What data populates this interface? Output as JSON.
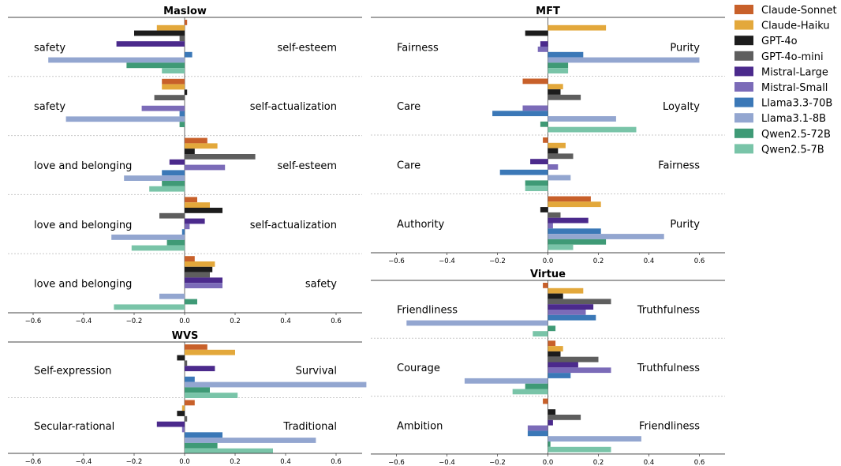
{
  "legend": {
    "placement": "top-right",
    "entries": [
      {
        "name": "Claude-Sonnet",
        "color": "#c8602a"
      },
      {
        "name": "Claude-Haiku",
        "color": "#e3a83b"
      },
      {
        "name": "GPT-4o",
        "color": "#1c1c1c"
      },
      {
        "name": "GPT-4o-mini",
        "color": "#5e5e5e"
      },
      {
        "name": "Mistral-Large",
        "color": "#4b2a8c"
      },
      {
        "name": "Mistral-Small",
        "color": "#7b6bb8"
      },
      {
        "name": "Llama3.3-70B",
        "color": "#3b78b7"
      },
      {
        "name": "Llama3.1-8B",
        "color": "#93a6d0"
      },
      {
        "name": "Qwen2.5-72B",
        "color": "#3f9a76"
      },
      {
        "name": "Qwen2.5-7B",
        "color": "#79c4a8"
      }
    ]
  },
  "chart_data": [
    {
      "type": "bar",
      "orientation": "horizontal",
      "title": "Maslow",
      "xlim": [
        -0.7,
        0.7
      ],
      "xticks": [
        -0.6,
        -0.4,
        -0.2,
        0.0,
        0.2,
        0.4,
        0.6
      ],
      "grid": false,
      "groups": [
        {
          "left": "safety",
          "right": "self-esteem",
          "values": [
            0.01,
            -0.11,
            -0.2,
            -0.02,
            -0.27,
            0.0,
            0.03,
            -0.54,
            -0.23,
            -0.09
          ]
        },
        {
          "left": "safety",
          "right": "self-actualization",
          "values": [
            -0.09,
            -0.09,
            0.01,
            -0.12,
            0.0,
            -0.17,
            -0.02,
            -0.47,
            -0.02,
            0.0
          ]
        },
        {
          "left": "love and belonging",
          "right": "self-esteem",
          "values": [
            0.09,
            0.13,
            0.04,
            0.28,
            -0.06,
            0.16,
            -0.09,
            -0.24,
            -0.09,
            -0.14
          ]
        },
        {
          "left": "love and belonging",
          "right": "self-actualization",
          "values": [
            0.05,
            0.1,
            0.15,
            -0.1,
            0.08,
            0.02,
            -0.01,
            -0.29,
            -0.07,
            -0.21
          ]
        },
        {
          "left": "love and belonging",
          "right": "safety",
          "values": [
            0.04,
            0.12,
            0.11,
            0.1,
            0.15,
            0.15,
            0.0,
            -0.1,
            0.05,
            -0.28
          ]
        }
      ]
    },
    {
      "type": "bar",
      "orientation": "horizontal",
      "title": "WVS",
      "xlim": [
        -0.7,
        0.7
      ],
      "xticks": [
        -0.6,
        -0.4,
        -0.2,
        0.0,
        0.2,
        0.4,
        0.6
      ],
      "grid": false,
      "groups": [
        {
          "left": "Self-expression",
          "right": "Survival",
          "values": [
            0.09,
            0.2,
            -0.03,
            0.01,
            0.12,
            0.0,
            0.04,
            0.72,
            0.1,
            0.21
          ]
        },
        {
          "left": "Secular-rational",
          "right": "Traditional",
          "values": [
            0.04,
            -0.01,
            -0.03,
            0.01,
            -0.11,
            -0.01,
            0.15,
            0.52,
            0.13,
            0.35
          ]
        }
      ]
    },
    {
      "type": "bar",
      "orientation": "horizontal",
      "title": "MFT",
      "xlim": [
        -0.7,
        0.7
      ],
      "xticks": [
        -0.6,
        -0.4,
        -0.2,
        0.0,
        0.2,
        0.4,
        0.6
      ],
      "grid": false,
      "groups": [
        {
          "left": "Fairness",
          "right": "Purity",
          "values": [
            0.0,
            0.23,
            -0.09,
            0.0,
            -0.03,
            -0.04,
            0.14,
            0.6,
            0.08,
            0.08
          ]
        },
        {
          "left": "Care",
          "right": "Loyalty",
          "values": [
            -0.1,
            0.06,
            0.05,
            0.13,
            0.0,
            -0.1,
            -0.22,
            0.27,
            -0.03,
            0.35
          ]
        },
        {
          "left": "Care",
          "right": "Fairness",
          "values": [
            -0.02,
            0.07,
            0.04,
            0.1,
            -0.07,
            0.04,
            -0.19,
            0.09,
            -0.09,
            -0.09
          ]
        },
        {
          "left": "Authority",
          "right": "Purity",
          "values": [
            0.17,
            0.21,
            -0.03,
            0.05,
            0.16,
            0.02,
            0.21,
            0.46,
            0.23,
            0.1
          ]
        }
      ]
    },
    {
      "type": "bar",
      "orientation": "horizontal",
      "title": "Virtue",
      "xlim": [
        -0.7,
        0.7
      ],
      "xticks": [
        -0.6,
        -0.4,
        -0.2,
        0.0,
        0.2,
        0.4,
        0.6
      ],
      "grid": false,
      "groups": [
        {
          "left": "Friendliness",
          "right": "Truthfulness",
          "values": [
            -0.02,
            0.14,
            0.06,
            0.25,
            0.18,
            0.15,
            0.19,
            -0.56,
            0.03,
            -0.06
          ]
        },
        {
          "left": "Courage",
          "right": "Truthfulness",
          "values": [
            0.03,
            0.06,
            0.05,
            0.2,
            0.12,
            0.25,
            0.09,
            -0.33,
            -0.09,
            -0.14
          ]
        },
        {
          "left": "Ambition",
          "right": "Friendliness",
          "values": [
            -0.02,
            0.0,
            0.03,
            0.13,
            0.02,
            -0.08,
            -0.08,
            0.37,
            0.01,
            0.25
          ]
        }
      ]
    }
  ]
}
